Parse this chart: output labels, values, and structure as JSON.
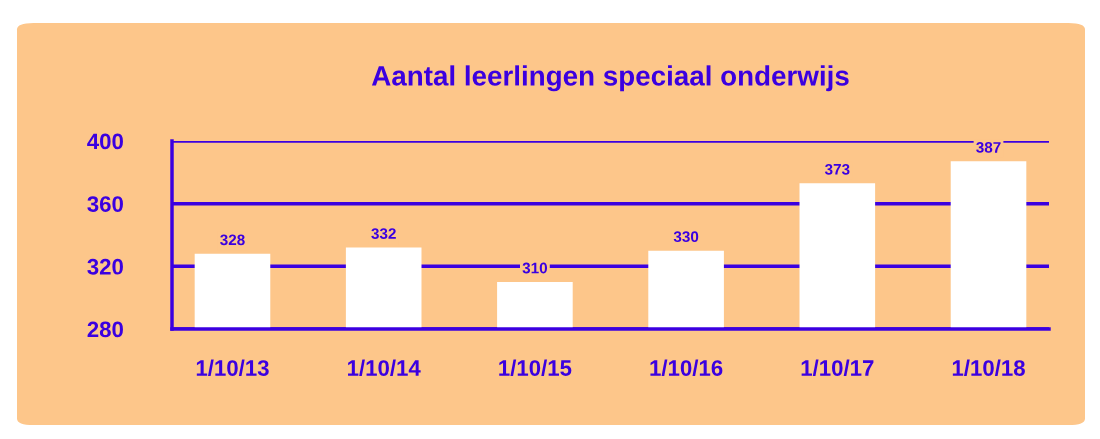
{
  "chart_data": {
    "type": "bar",
    "title": "Aantal leerlingen speciaal onderwijs",
    "categories": [
      "1/10/13",
      "1/10/14",
      "1/10/15",
      "1/10/16",
      "1/10/17",
      "1/10/18"
    ],
    "values": [
      328,
      332,
      310,
      330,
      373,
      387
    ],
    "color": "#ffffff",
    "ylim": [
      280,
      400
    ],
    "yticks": [
      280,
      320,
      360,
      400
    ],
    "grid": "y",
    "data_labels": true
  }
}
